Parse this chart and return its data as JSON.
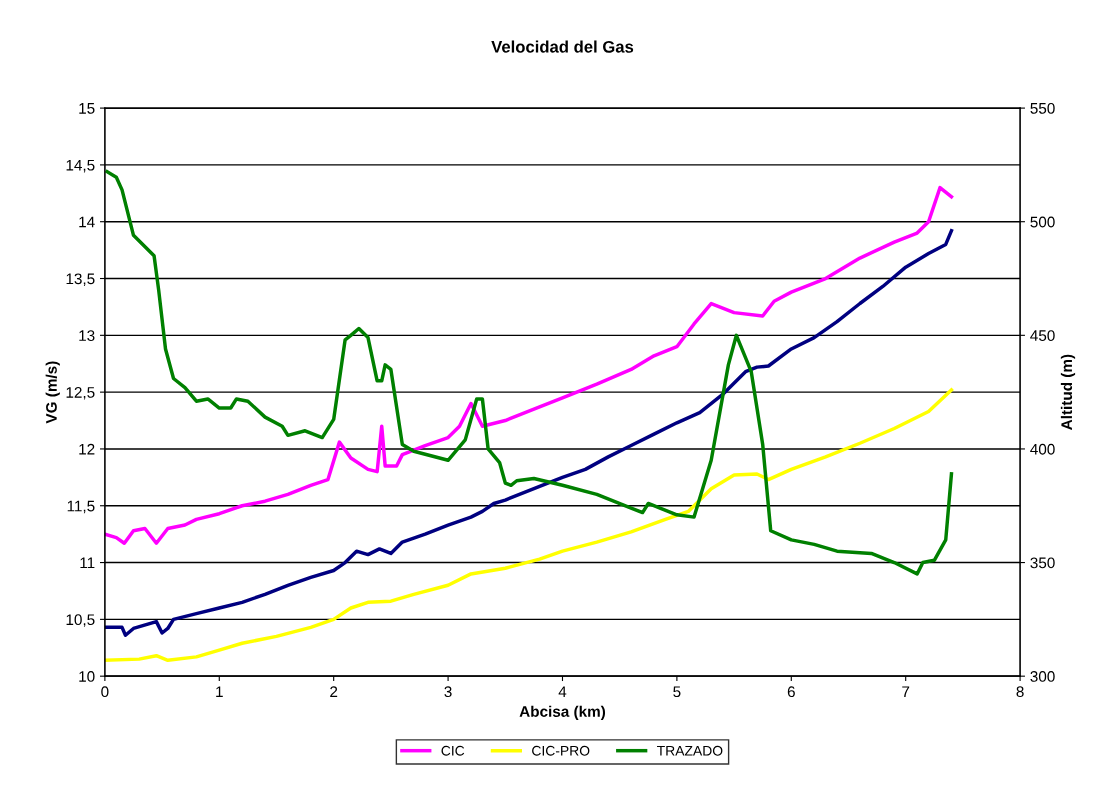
{
  "chart_data": {
    "type": "line",
    "title": "Velocidad del Gas",
    "xlabel": "Abcisa (km)",
    "ylabel": "VG (m/s)",
    "y2label": "Altitud (m)",
    "xlim": [
      0,
      8
    ],
    "xticks": [
      0,
      1,
      2,
      3,
      4,
      5,
      6,
      7,
      8
    ],
    "ylim": [
      10,
      15
    ],
    "yticks": [
      10,
      {
        "value": 10.5,
        "label": "10,5"
      },
      11,
      {
        "value": 11.5,
        "label": "11,5"
      },
      12,
      {
        "value": 12.5,
        "label": "12,5"
      },
      13,
      {
        "value": 13.5,
        "label": "13,5"
      },
      14,
      {
        "value": 14.5,
        "label": "14,5"
      },
      15
    ],
    "y2lim": [
      300,
      550
    ],
    "y2ticks": [
      300,
      350,
      400,
      450,
      500,
      550
    ],
    "grid": "y",
    "legend": "bottom",
    "marker": "none",
    "line_style": "solid",
    "series": [
      {
        "color": "#000080",
        "x": [
          0,
          0.15,
          0.18,
          0.25,
          0.45,
          0.5,
          0.55,
          0.6,
          0.8,
          1.0,
          1.2,
          1.4,
          1.6,
          1.8,
          2.0,
          2.1,
          2.2,
          2.3,
          2.4,
          2.5,
          2.6,
          2.8,
          3.0,
          3.2,
          3.3,
          3.4,
          3.5,
          3.8,
          4.0,
          4.2,
          4.4,
          4.6,
          4.8,
          5.0,
          5.2,
          5.4,
          5.6,
          5.7,
          5.8,
          6.0,
          6.2,
          6.4,
          6.6,
          6.8,
          7.0,
          7.2,
          7.35,
          7.4
        ],
        "values": [
          10.43,
          10.43,
          10.36,
          10.42,
          10.48,
          10.38,
          10.42,
          10.5,
          10.55,
          10.6,
          10.65,
          10.72,
          10.8,
          10.87,
          10.93,
          11.0,
          11.1,
          11.07,
          11.12,
          11.08,
          11.18,
          11.25,
          11.33,
          11.4,
          11.45,
          11.52,
          11.55,
          11.67,
          11.75,
          11.82,
          11.93,
          12.03,
          12.13,
          12.23,
          12.32,
          12.48,
          12.68,
          12.72,
          12.73,
          12.88,
          12.98,
          13.12,
          13.28,
          13.43,
          13.6,
          13.72,
          13.8,
          13.92
        ]
      },
      {
        "name": "CIC",
        "color": "#ff00ff",
        "x": [
          0,
          0.1,
          0.17,
          0.25,
          0.35,
          0.45,
          0.55,
          0.7,
          0.8,
          1.0,
          1.2,
          1.4,
          1.6,
          1.8,
          1.95,
          2.05,
          2.15,
          2.3,
          2.38,
          2.42,
          2.45,
          2.55,
          2.6,
          2.8,
          3.0,
          3.1,
          3.2,
          3.3,
          3.5,
          3.8,
          4.0,
          4.3,
          4.6,
          4.8,
          5.0,
          5.15,
          5.3,
          5.5,
          5.75,
          5.85,
          6.0,
          6.3,
          6.6,
          6.9,
          7.1,
          7.2,
          7.3,
          7.4
        ],
        "values": [
          11.25,
          11.22,
          11.17,
          11.28,
          11.3,
          11.17,
          11.3,
          11.33,
          11.38,
          11.43,
          11.5,
          11.54,
          11.6,
          11.68,
          11.73,
          12.06,
          11.92,
          11.82,
          11.8,
          12.2,
          11.85,
          11.85,
          11.95,
          12.03,
          12.1,
          12.2,
          12.4,
          12.2,
          12.25,
          12.37,
          12.45,
          12.57,
          12.7,
          12.82,
          12.9,
          13.1,
          13.28,
          13.2,
          13.17,
          13.3,
          13.38,
          13.5,
          13.68,
          13.82,
          13.9,
          14.0,
          14.3,
          14.22
        ]
      },
      {
        "name": "CIC-PRO",
        "color": "#ffff00",
        "x": [
          0,
          0.3,
          0.45,
          0.55,
          0.8,
          1.0,
          1.2,
          1.5,
          1.8,
          2.0,
          2.15,
          2.3,
          2.5,
          2.7,
          3.0,
          3.2,
          3.5,
          3.8,
          4.0,
          4.3,
          4.6,
          4.9,
          5.1,
          5.3,
          5.5,
          5.7,
          5.8,
          6.0,
          6.3,
          6.6,
          6.9,
          7.2,
          7.4
        ],
        "values": [
          10.14,
          10.15,
          10.18,
          10.14,
          10.17,
          10.23,
          10.29,
          10.35,
          10.43,
          10.5,
          10.6,
          10.65,
          10.66,
          10.72,
          10.8,
          10.9,
          10.95,
          11.03,
          11.1,
          11.18,
          11.27,
          11.38,
          11.45,
          11.65,
          11.77,
          11.78,
          11.73,
          11.82,
          11.93,
          12.05,
          12.18,
          12.33,
          12.52
        ]
      },
      {
        "name": "TRAZADO",
        "color": "#008000",
        "axis": "y2",
        "x": [
          0.02,
          0.1,
          0.15,
          0.25,
          0.43,
          0.47,
          0.53,
          0.6,
          0.7,
          0.8,
          0.9,
          1.0,
          1.1,
          1.15,
          1.25,
          1.4,
          1.55,
          1.6,
          1.75,
          1.9,
          2.0,
          2.1,
          2.15,
          2.22,
          2.3,
          2.38,
          2.42,
          2.45,
          2.5,
          2.6,
          2.7,
          3.0,
          3.15,
          3.25,
          3.3,
          3.35,
          3.45,
          3.5,
          3.55,
          3.6,
          3.75,
          4.0,
          4.3,
          4.6,
          4.7,
          4.75,
          5.0,
          5.15,
          5.3,
          5.45,
          5.52,
          5.65,
          5.75,
          5.82,
          6.0,
          6.2,
          6.4,
          6.7,
          6.9,
          7.1,
          7.15,
          7.25,
          7.35,
          7.4
        ],
        "values": [
          522,
          519.6,
          514,
          494,
          485,
          470,
          444,
          431,
          427,
          421,
          422,
          418,
          418,
          422,
          421,
          414,
          410,
          406,
          408,
          405,
          413,
          448,
          450,
          453,
          449,
          430,
          430,
          437,
          435,
          402,
          399,
          395,
          404,
          422,
          422,
          400,
          394,
          385,
          384,
          386,
          387,
          384,
          380,
          374,
          372,
          376,
          371,
          370,
          395,
          437,
          450,
          434,
          402,
          364,
          360,
          358,
          355,
          354,
          350,
          345,
          350,
          351,
          360,
          389
        ]
      }
    ]
  }
}
